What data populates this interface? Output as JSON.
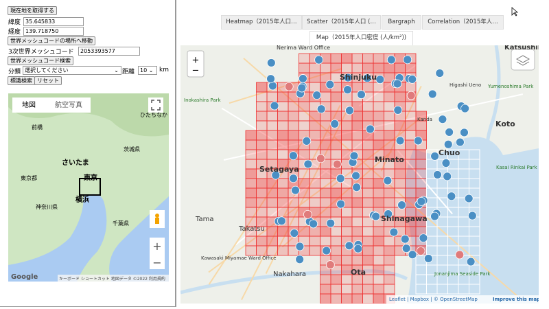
{
  "sidebar": {
    "locate_button": "現在地を取得する",
    "lat_label": "緯度",
    "lat_value": "35.645833",
    "lng_label": "経度",
    "lng_value": "139.718750",
    "move_button": "世界メッシュコードの場所へ移動",
    "mesh_label": "3次世界メッシュコード",
    "mesh_value": "2053393577",
    "search_button": "世界メッシュコード検索",
    "category_label": "分類",
    "category_value": "選択してください",
    "distance_label": "距離",
    "distance_value": "10",
    "distance_unit": "km",
    "standard_button": "標識検索",
    "reset_button": "リセット"
  },
  "google_map": {
    "map_tab": "地図",
    "satellite_tab": "航空写真",
    "labels": [
      "前橋",
      "ひたちなか",
      "さいたま",
      "東京",
      "東京都",
      "横浜",
      "千葉県",
      "神奈川県",
      "茨城県"
    ],
    "logo": "Google",
    "footer": "キーボード ショートカット  地図データ ©2022  利用規約"
  },
  "tabs": [
    "Heatmap（2015年人口…",
    "Scatter（2015年人口 (…",
    "Bargraph",
    "Correlation（2015年人…"
  ],
  "active_tab": "Map（2015年人口密度 (人/km²))",
  "leaflet_map": {
    "labels": [
      "Nerima Ward Office",
      "Shinjuku",
      "Minato",
      "Setagaya",
      "Shinagawa",
      "Ota",
      "Koto",
      "Chuo",
      "Katsushika",
      "Tama",
      "Takatsu",
      "Nakahara",
      "Kawasaki Miyamae Ward Office",
      "Inokashira Park",
      "Kasai Rinkai Park",
      "Yumenoshima Park",
      "Jonanjima Seaside Park",
      "Higashi Ueno",
      "Kanda"
    ],
    "attribution": "Leaflet | Mapbox | © OpenStreetMap",
    "improve": "Improve this map"
  }
}
